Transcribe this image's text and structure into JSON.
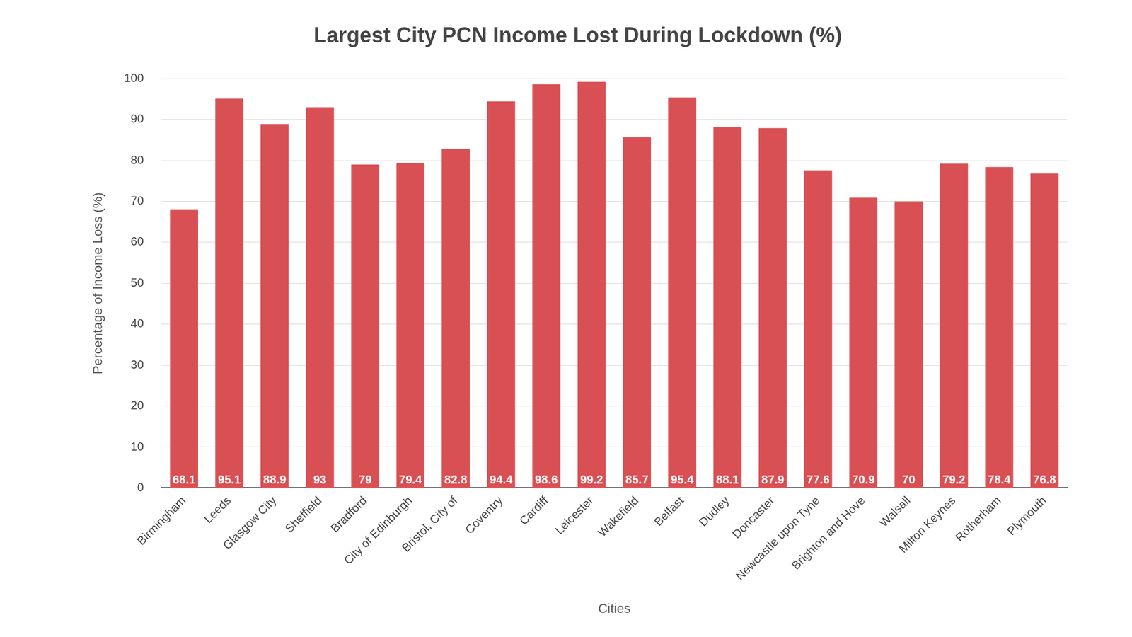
{
  "chart_data": {
    "type": "bar",
    "title": "Largest City PCN Income Lost During Lockdown (%)",
    "x_label": "Cities",
    "y_label": "Percentage of Income Loss (%)",
    "categories": [
      "Birmingham",
      "Leeds",
      "Glasgow City",
      "Sheffield",
      "Bradford",
      "City of Edinburgh",
      "Bristol, City of",
      "Coventry",
      "Cardiff",
      "Leicester",
      "Wakefield",
      "Belfast",
      "Dudley",
      "Doncaster",
      "Newcastle upon Tyne",
      "Brighton and Hove",
      "Walsall",
      "Milton Keynes",
      "Rotherham",
      "Plymouth"
    ],
    "values": [
      68.1,
      95.1,
      88.9,
      93,
      79,
      79.4,
      82.8,
      94.4,
      98.6,
      99.2,
      85.7,
      95.4,
      88.1,
      87.9,
      77.6,
      70.9,
      70,
      79.2,
      78.4,
      76.8
    ],
    "color": "#d95054",
    "ylim": [
      0,
      100
    ],
    "yticks": [
      0,
      10,
      20,
      30,
      40,
      50,
      60,
      70,
      80,
      90,
      100
    ],
    "grid": true,
    "data_labels": true
  }
}
